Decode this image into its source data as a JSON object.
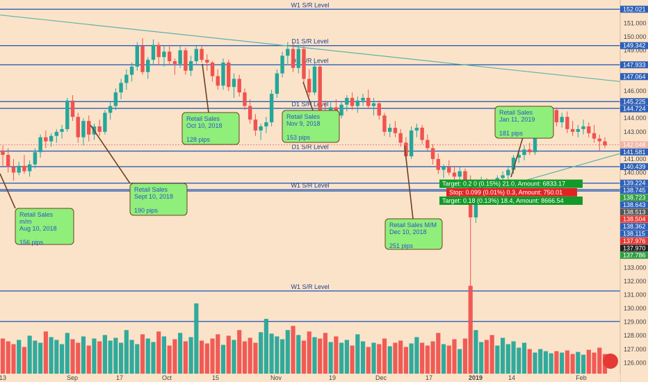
{
  "chart_data": {
    "type": "candlestick",
    "instrument_price_axis": {
      "ylim": [
        125.2,
        152.6
      ],
      "ticks": [
        126,
        127,
        128,
        129,
        130,
        131,
        132,
        133,
        134,
        135,
        136,
        137,
        138,
        139,
        140,
        141,
        142,
        143,
        144,
        145,
        146,
        147,
        148,
        149,
        150,
        151,
        152
      ]
    },
    "x_tick_labels": [
      "13",
      "Sep",
      "17",
      "Oct",
      "15",
      "Nov",
      "19",
      "Dec",
      "17",
      "2019",
      "14",
      "Feb"
    ],
    "candles": [
      [
        141.6,
        142.0,
        140.5,
        141.3
      ],
      [
        141.3,
        141.8,
        140.0,
        140.4
      ],
      [
        140.4,
        141.0,
        139.4,
        140.0
      ],
      [
        140.0,
        140.8,
        139.8,
        140.5
      ],
      [
        140.5,
        141.3,
        139.9,
        140.1
      ],
      [
        140.1,
        140.9,
        139.7,
        140.6
      ],
      [
        140.6,
        141.8,
        140.3,
        141.5
      ],
      [
        141.5,
        142.8,
        141.1,
        142.6
      ],
      [
        142.6,
        143.1,
        141.8,
        142.3
      ],
      [
        142.3,
        142.9,
        141.9,
        142.7
      ],
      [
        142.7,
        143.2,
        142.2,
        143.0
      ],
      [
        143.0,
        143.5,
        142.5,
        143.2
      ],
      [
        143.2,
        145.5,
        143.0,
        145.3
      ],
      [
        145.3,
        145.7,
        143.8,
        144.1
      ],
      [
        144.1,
        144.4,
        142.2,
        142.6
      ],
      [
        142.6,
        144.0,
        142.0,
        143.8
      ],
      [
        143.8,
        144.2,
        142.3,
        142.8
      ],
      [
        142.8,
        143.6,
        142.4,
        143.4
      ],
      [
        143.4,
        143.9,
        142.7,
        143.0
      ],
      [
        143.0,
        144.6,
        142.8,
        144.4
      ],
      [
        144.4,
        145.2,
        143.9,
        144.9
      ],
      [
        144.9,
        146.2,
        144.6,
        145.9
      ],
      [
        145.9,
        146.9,
        145.4,
        146.6
      ],
      [
        146.6,
        147.6,
        146.1,
        147.2
      ],
      [
        147.2,
        148.1,
        146.7,
        147.8
      ],
      [
        147.8,
        149.6,
        147.5,
        149.3
      ],
      [
        149.3,
        149.9,
        147.2,
        147.4
      ],
      [
        147.4,
        148.5,
        146.9,
        148.3
      ],
      [
        148.3,
        149.8,
        147.9,
        149.4
      ],
      [
        149.4,
        149.6,
        147.9,
        148.5
      ],
      [
        148.5,
        149.3,
        147.8,
        148.9
      ],
      [
        148.9,
        149.4,
        147.9,
        148.2
      ],
      [
        148.2,
        148.4,
        147.2,
        148.0
      ],
      [
        148.0,
        149.3,
        147.7,
        149.0
      ],
      [
        149.0,
        149.2,
        147.2,
        147.5
      ],
      [
        147.5,
        148.6,
        147.1,
        148.2
      ],
      [
        148.2,
        149.4,
        147.9,
        149.1
      ],
      [
        149.1,
        149.4,
        148.1,
        148.3
      ],
      [
        148.3,
        148.7,
        147.5,
        148.1
      ],
      [
        148.1,
        148.2,
        146.7,
        147.1
      ],
      [
        147.1,
        147.6,
        146.1,
        146.4
      ],
      [
        146.4,
        148.4,
        146.1,
        148.1
      ],
      [
        148.1,
        148.3,
        146.0,
        146.3
      ],
      [
        146.3,
        147.3,
        145.5,
        146.9
      ],
      [
        146.9,
        147.2,
        145.6,
        145.9
      ],
      [
        145.9,
        146.2,
        144.6,
        144.9
      ],
      [
        144.9,
        145.4,
        143.6,
        143.9
      ],
      [
        143.9,
        144.3,
        142.7,
        143.1
      ],
      [
        143.1,
        143.6,
        142.4,
        143.4
      ],
      [
        143.4,
        144.1,
        142.9,
        143.7
      ],
      [
        143.7,
        146.1,
        143.4,
        145.8
      ],
      [
        145.8,
        147.6,
        145.5,
        147.3
      ],
      [
        147.3,
        148.9,
        147.0,
        148.6
      ],
      [
        148.6,
        149.6,
        148.0,
        149.1
      ],
      [
        149.1,
        149.6,
        147.4,
        147.7
      ],
      [
        147.7,
        149.4,
        147.3,
        149.1
      ],
      [
        149.1,
        149.3,
        146.6,
        146.9
      ],
      [
        146.9,
        147.6,
        145.6,
        145.9
      ],
      [
        145.9,
        148.1,
        145.7,
        147.8
      ],
      [
        147.8,
        147.9,
        144.4,
        144.6
      ],
      [
        144.6,
        145.3,
        143.9,
        144.4
      ],
      [
        144.4,
        145.2,
        143.7,
        144.8
      ],
      [
        144.8,
        145.4,
        144.0,
        144.2
      ],
      [
        144.2,
        145.2,
        144.0,
        145.0
      ],
      [
        145.0,
        145.7,
        144.5,
        145.5
      ],
      [
        145.5,
        145.9,
        144.6,
        144.9
      ],
      [
        144.9,
        145.6,
        144.4,
        145.3
      ],
      [
        145.3,
        145.8,
        144.9,
        145.5
      ],
      [
        145.5,
        146.1,
        144.7,
        144.9
      ],
      [
        144.9,
        145.5,
        144.2,
        145.1
      ],
      [
        145.1,
        145.3,
        143.9,
        144.2
      ],
      [
        144.2,
        144.4,
        142.7,
        143.0
      ],
      [
        143.0,
        143.6,
        142.6,
        143.3
      ],
      [
        143.3,
        143.8,
        142.6,
        142.9
      ],
      [
        142.9,
        143.2,
        141.9,
        142.2
      ],
      [
        142.2,
        142.6,
        140.9,
        141.2
      ],
      [
        141.2,
        143.4,
        141.0,
        143.1
      ],
      [
        143.1,
        143.6,
        142.6,
        143.3
      ],
      [
        143.3,
        143.5,
        142.1,
        142.4
      ],
      [
        142.4,
        142.8,
        141.6,
        141.8
      ],
      [
        141.8,
        142.1,
        140.6,
        141.0
      ],
      [
        141.0,
        141.4,
        139.9,
        140.2
      ],
      [
        140.2,
        140.6,
        139.6,
        140.4
      ],
      [
        140.4,
        140.9,
        139.8,
        140.0
      ],
      [
        140.0,
        140.5,
        139.4,
        139.7
      ],
      [
        139.7,
        140.4,
        139.4,
        140.1
      ],
      [
        140.1,
        140.3,
        139.1,
        139.4
      ],
      [
        139.4,
        139.8,
        131.4,
        136.7
      ],
      [
        136.7,
        138.9,
        136.3,
        138.6
      ],
      [
        138.6,
        139.7,
        138.3,
        139.3
      ],
      [
        139.3,
        139.6,
        138.9,
        139.2
      ],
      [
        139.2,
        139.5,
        138.7,
        138.9
      ],
      [
        138.9,
        139.8,
        138.6,
        139.6
      ],
      [
        139.6,
        140.1,
        139.2,
        139.8
      ],
      [
        139.8,
        140.5,
        139.5,
        140.2
      ],
      [
        140.2,
        141.3,
        139.9,
        141.1
      ],
      [
        141.1,
        141.6,
        140.7,
        141.3
      ],
      [
        141.3,
        142.0,
        140.9,
        141.7
      ],
      [
        141.7,
        142.2,
        141.3,
        141.5
      ],
      [
        141.5,
        143.0,
        141.3,
        142.8
      ],
      [
        142.8,
        143.6,
        142.5,
        143.3
      ],
      [
        143.3,
        143.8,
        142.9,
        143.6
      ],
      [
        143.6,
        144.9,
        143.2,
        144.6
      ],
      [
        144.6,
        144.8,
        143.4,
        143.7
      ],
      [
        143.7,
        144.4,
        143.3,
        144.1
      ],
      [
        144.1,
        144.5,
        142.9,
        143.2
      ],
      [
        143.2,
        143.8,
        142.7,
        143.0
      ],
      [
        143.0,
        143.5,
        142.6,
        143.2
      ],
      [
        143.2,
        143.9,
        142.8,
        143.4
      ],
      [
        143.4,
        143.7,
        142.6,
        142.9
      ],
      [
        142.9,
        143.5,
        142.2,
        142.5
      ],
      [
        142.5,
        142.8,
        141.6,
        142.3
      ],
      [
        142.3,
        142.6,
        141.8,
        142.0
      ]
    ],
    "volume_bars": [
      0.5,
      0.46,
      0.42,
      0.48,
      0.38,
      0.54,
      0.47,
      0.44,
      0.6,
      0.52,
      0.48,
      0.42,
      0.58,
      0.49,
      0.44,
      0.53,
      0.4,
      0.5,
      0.46,
      0.55,
      0.47,
      0.51,
      0.44,
      0.62,
      0.48,
      0.42,
      0.56,
      0.5,
      0.45,
      0.6,
      0.53,
      0.4,
      0.49,
      0.58,
      0.46,
      0.52,
      1.0,
      0.47,
      0.43,
      0.5,
      0.56,
      0.41,
      0.54,
      0.48,
      0.62,
      0.46,
      0.51,
      0.44,
      0.59,
      0.78,
      0.57,
      0.53,
      0.49,
      0.62,
      0.68,
      0.55,
      0.47,
      0.6,
      0.52,
      0.5,
      0.58,
      0.45,
      0.53,
      0.44,
      0.48,
      0.4,
      0.56,
      0.46,
      0.38,
      0.44,
      0.42,
      0.5,
      0.39,
      0.44,
      0.47,
      0.38,
      0.43,
      0.52,
      0.44,
      0.4,
      0.46,
      0.58,
      0.42,
      0.4,
      0.49,
      0.35,
      0.5,
      1.25,
      0.62,
      0.45,
      0.48,
      0.55,
      0.4,
      0.51,
      0.42,
      0.46,
      0.37,
      0.44,
      0.35,
      0.3,
      0.35,
      0.32,
      0.29,
      0.32,
      0.3,
      0.33,
      0.28,
      0.31,
      0.27,
      0.34,
      0.3,
      0.37,
      0.28
    ],
    "levels": [
      {
        "price": 152.021,
        "label": "W1 S/R Level"
      },
      {
        "price": 149.342,
        "label": "D1 S/R Level"
      },
      {
        "price": 147.933,
        "label": "D1 S/R Level"
      },
      {
        "price": 145.225,
        "label": ""
      },
      {
        "price": 144.724,
        "label": "D1 S/R Level"
      },
      {
        "price": 141.581,
        "label": "D1 S/R Level"
      },
      {
        "price": 140.439,
        "label": ""
      },
      {
        "price": 139.224,
        "label": ""
      },
      {
        "price": 138.745,
        "label": "W1 S/R Level"
      },
      {
        "price": 138.643,
        "label": ""
      },
      {
        "price": 131.285,
        "label": "W1 S/R Level"
      },
      {
        "price": 129.043,
        "label": ""
      }
    ],
    "price_tags": [
      {
        "text": "152.021",
        "price": 152.021,
        "color": "#2c5fb8"
      },
      {
        "text": "149.342",
        "price": 149.342,
        "color": "#2c5fb8"
      },
      {
        "text": "147.933",
        "price": 147.933,
        "color": "#2c5fb8"
      },
      {
        "text": "147.064",
        "price": 147.064,
        "color": "#2c5fb8"
      },
      {
        "text": "145.225",
        "price": 145.225,
        "color": "#2c5fb8"
      },
      {
        "text": "144.724",
        "price": 144.724,
        "color": "#2c5fb8"
      },
      {
        "text": "142.048",
        "price": 142.048,
        "color": "#f0b5a8"
      },
      {
        "text": "141.581",
        "price": 141.581,
        "color": "#2c5fb8"
      },
      {
        "text": "140.439",
        "price": 140.439,
        "color": "#2c5fb8"
      },
      {
        "text": "139.224",
        "price": 139.224,
        "color": "#2c5fb8"
      },
      {
        "text": "138.745",
        "price": 138.745,
        "color": "#2c5fb8"
      },
      {
        "text": "138.723",
        "price": 138.723,
        "color": "#2f9e44"
      },
      {
        "text": "138.643",
        "price": 138.643,
        "color": "#2c5fb8"
      },
      {
        "text": "138.513",
        "price": 138.513,
        "color": "#555555"
      },
      {
        "text": "138.504",
        "price": 138.504,
        "color": "#e53935"
      },
      {
        "text": "138.362",
        "price": 138.362,
        "color": "#2c5fb8"
      },
      {
        "text": "138.115",
        "price": 138.115,
        "color": "#2c5fb8"
      },
      {
        "text": "137.970",
        "price": 137.97,
        "color": "#222222"
      },
      {
        "text": "137.976",
        "price": 137.976,
        "color": "#e53935"
      },
      {
        "text": "137.786",
        "price": 137.786,
        "color": "#2f9e44"
      }
    ],
    "annotations": [
      {
        "lines": [
          "Retail Sales",
          "m/m",
          "Aug 10, 2018",
          "",
          "156 pips"
        ],
        "target_candle": 0
      },
      {
        "lines": [
          "Retail Sales",
          "Sept 10, 2018",
          "",
          "190 pips"
        ],
        "target_candle": 20
      },
      {
        "lines": [
          "Retail Sales",
          "Oct 10, 2018",
          "",
          "128 pips"
        ],
        "target_candle": 45
      },
      {
        "lines": [
          "Retail Sales",
          "Nov 9, 2018",
          "",
          "153 pips"
        ],
        "target_candle": 67
      },
      {
        "lines": [
          "Retail Sales M/M",
          "Dec 10, 2018",
          "",
          "251 pips"
        ],
        "target_candle": 90
      },
      {
        "lines": [
          "Retail Sales",
          "Jan 11, 2019",
          "",
          "181 pips"
        ],
        "target_candle": 111
      }
    ],
    "orders": [
      {
        "text": "Target: 0.2 0 (0.15%) 21.0, Amount: 6833.17",
        "color": "#129a2a",
        "price": 139.18
      },
      {
        "text": "Stop: 0.099 (0.01%) 0.3, Amount: 750.01",
        "color": "#e02424",
        "price": 138.55
      },
      {
        "text": "Target: 0.18 (0.13%) 18.4, Amount: 8666.54",
        "color": "#129a2a",
        "price": 137.93
      }
    ],
    "colors": {
      "up": "#26a69a",
      "down": "#ef5350",
      "level": "#2c5fb8",
      "trend": "#5bb3a6",
      "annotation_fill": "#90ee7a"
    }
  }
}
